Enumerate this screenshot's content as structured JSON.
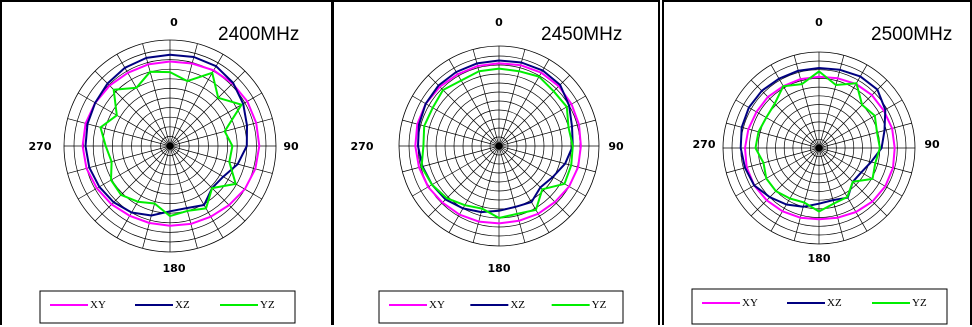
{
  "colors": {
    "XY": "#ff00ff",
    "XZ": "#000080",
    "YZ": "#00ee00",
    "grid": "#000000"
  },
  "chart_data": [
    {
      "type": "polar-line",
      "title": "2400MHz",
      "angle_labels": [
        "0",
        "90",
        "180",
        "270"
      ],
      "rlim": [
        0,
        1
      ],
      "rings": 10,
      "spokes": 24,
      "legend_position": "bottom",
      "series": [
        {
          "name": "XY",
          "r": [
            0.88,
            0.89,
            0.91,
            0.92,
            0.93,
            0.93,
            0.93,
            0.92,
            0.9,
            0.87,
            0.85,
            0.84,
            0.83,
            0.83,
            0.84,
            0.86,
            0.88,
            0.9,
            0.91,
            0.91,
            0.9,
            0.89,
            0.88,
            0.88
          ]
        },
        {
          "name": "XZ",
          "r": [
            0.95,
            0.96,
            0.96,
            0.93,
            0.88,
            0.83,
            0.8,
            0.73,
            0.64,
            0.62,
            0.71,
            0.67,
            0.68,
            0.75,
            0.8,
            0.83,
            0.85,
            0.87,
            0.88,
            0.89,
            0.9,
            0.92,
            0.94,
            0.95
          ]
        },
        {
          "name": "YZ",
          "r": [
            0.77,
            0.7,
            0.88,
            0.71,
            0.86,
            0.59,
            0.65,
            0.64,
            0.79,
            0.62,
            0.75,
            0.7,
            0.73,
            0.62,
            0.67,
            0.72,
            0.71,
            0.63,
            0.67,
            0.75,
            0.64,
            0.83,
            0.7,
            0.8
          ]
        }
      ]
    },
    {
      "type": "polar-line",
      "title": "2450MHz",
      "angle_labels": [
        "0",
        "90",
        "180",
        "270"
      ],
      "rlim": [
        0,
        1
      ],
      "rings": 10,
      "spokes": 24,
      "legend_position": "bottom",
      "series": [
        {
          "name": "XY",
          "r": [
            0.92,
            0.93,
            0.94,
            0.94,
            0.93,
            0.92,
            0.91,
            0.91,
            0.9,
            0.88,
            0.87,
            0.86,
            0.86,
            0.87,
            0.88,
            0.89,
            0.91,
            0.92,
            0.93,
            0.94,
            0.94,
            0.93,
            0.92,
            0.92
          ]
        },
        {
          "name": "XZ",
          "r": [
            0.95,
            0.96,
            0.97,
            0.96,
            0.9,
            0.84,
            0.82,
            0.76,
            0.69,
            0.65,
            0.72,
            0.7,
            0.72,
            0.76,
            0.8,
            0.84,
            0.86,
            0.88,
            0.9,
            0.92,
            0.94,
            0.95,
            0.95,
            0.95
          ]
        },
        {
          "name": "YZ",
          "r": [
            0.86,
            0.86,
            0.89,
            0.86,
            0.87,
            0.8,
            0.82,
            0.83,
            0.84,
            0.68,
            0.82,
            0.78,
            0.8,
            0.72,
            0.76,
            0.82,
            0.86,
            0.89,
            0.84,
            0.86,
            0.85,
            0.88,
            0.84,
            0.86
          ]
        }
      ]
    },
    {
      "type": "polar-line",
      "title": "2500MHz",
      "angle_labels": [
        "0",
        "90",
        "180",
        "270"
      ],
      "rlim": [
        0,
        1
      ],
      "rings": 10,
      "spokes": 24,
      "legend_position": "bottom",
      "series": [
        {
          "name": "XY",
          "r": [
            0.82,
            0.83,
            0.85,
            0.86,
            0.86,
            0.87,
            0.87,
            0.88,
            0.88,
            0.87,
            0.85,
            0.83,
            0.82,
            0.83,
            0.84,
            0.85,
            0.86,
            0.86,
            0.85,
            0.84,
            0.83,
            0.83,
            0.82,
            0.82
          ]
        },
        {
          "name": "XZ",
          "r": [
            0.92,
            0.93,
            0.95,
            0.95,
            0.88,
            0.78,
            0.72,
            0.62,
            0.56,
            0.55,
            0.66,
            0.62,
            0.64,
            0.7,
            0.75,
            0.8,
            0.86,
            0.88,
            0.9,
            0.92,
            0.93,
            0.93,
            0.92,
            0.92
          ]
        },
        {
          "name": "YZ",
          "r": [
            0.88,
            0.75,
            0.86,
            0.7,
            0.74,
            0.69,
            0.7,
            0.67,
            0.71,
            0.55,
            0.65,
            0.66,
            0.73,
            0.65,
            0.67,
            0.7,
            0.7,
            0.66,
            0.73,
            0.72,
            0.7,
            0.72,
            0.82,
            0.76
          ]
        }
      ]
    }
  ]
}
